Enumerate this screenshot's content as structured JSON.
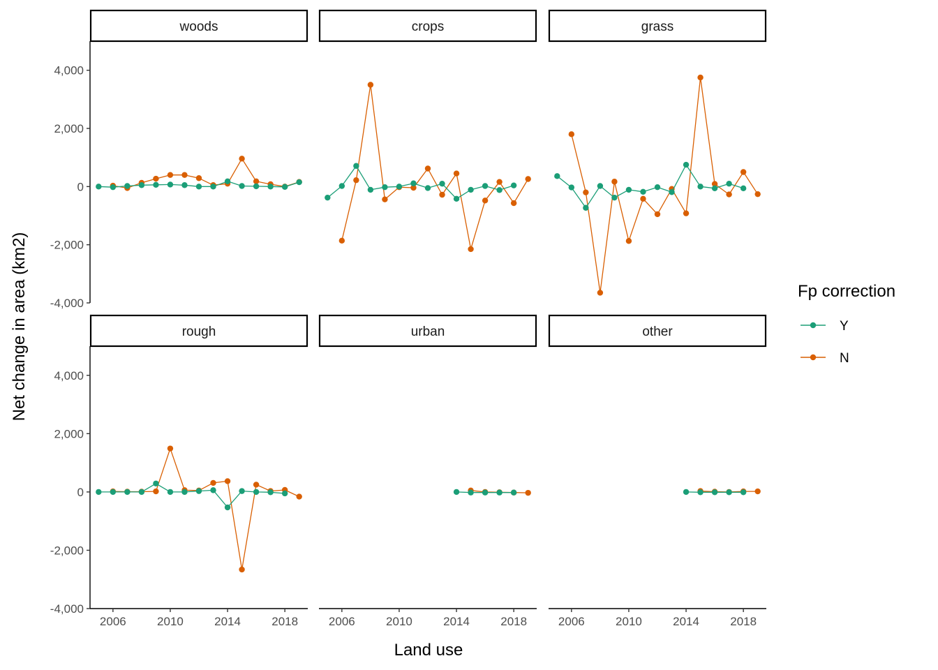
{
  "chart_data": {
    "type": "line",
    "layout": "facets-2x3",
    "xlabel": "Land use",
    "ylabel": "Net change in area (km2)",
    "xlim": [
      2004.4,
      2019.6
    ],
    "ylim": [
      -4000,
      5000
    ],
    "x_ticks": [
      2006,
      2010,
      2014,
      2018
    ],
    "x_tick_labels": [
      "2006",
      "2010",
      "2014",
      "2018"
    ],
    "y_ticks": [
      -4000,
      -2000,
      0,
      2000,
      4000
    ],
    "y_tick_labels": [
      "-4,000",
      "-2,000",
      "0",
      "2,000",
      "4,000"
    ],
    "grid": false,
    "legend": {
      "title": "Fp correction",
      "placement": "right",
      "entries": [
        {
          "key": "Y",
          "label": "Y",
          "color": "#1b9e77"
        },
        {
          "key": "N",
          "label": "N",
          "color": "#d95f02"
        }
      ]
    },
    "facets": [
      {
        "name": "woods",
        "series": [
          {
            "key": "Y",
            "x": [
              2005,
              2006,
              2007,
              2008,
              2009,
              2010,
              2011,
              2012,
              2013,
              2014,
              2015,
              2016,
              2017,
              2018,
              2019
            ],
            "values": [
              0,
              -20,
              20,
              50,
              60,
              70,
              50,
              0,
              0,
              180,
              20,
              10,
              0,
              -10,
              150
            ]
          },
          {
            "key": "N",
            "x": [
              2006,
              2007,
              2008,
              2009,
              2010,
              2011,
              2012,
              2013,
              2014,
              2015,
              2016,
              2017,
              2018,
              2019
            ],
            "values": [
              30,
              -50,
              130,
              270,
              400,
              400,
              290,
              50,
              100,
              960,
              180,
              80,
              0,
              160
            ]
          }
        ]
      },
      {
        "name": "crops",
        "series": [
          {
            "key": "Y",
            "x": [
              2005,
              2006,
              2007,
              2008,
              2009,
              2010,
              2011,
              2012,
              2013,
              2014,
              2015,
              2016,
              2017,
              2018
            ],
            "values": [
              -380,
              20,
              710,
              -110,
              -20,
              0,
              110,
              -50,
              100,
              -420,
              -110,
              20,
              -120,
              40
            ]
          },
          {
            "key": "N",
            "x": [
              2006,
              2007,
              2008,
              2009,
              2010,
              2011,
              2012,
              2013,
              2014,
              2015,
              2016,
              2017,
              2018,
              2019
            ],
            "values": [
              -1860,
              220,
              3500,
              -440,
              -20,
              -40,
              620,
              -280,
              450,
              -2150,
              -480,
              160,
              -570,
              260
            ]
          }
        ]
      },
      {
        "name": "grass",
        "series": [
          {
            "key": "Y",
            "x": [
              2005,
              2006,
              2007,
              2008,
              2009,
              2010,
              2011,
              2012,
              2013,
              2014,
              2015,
              2016,
              2017,
              2018
            ],
            "values": [
              360,
              -30,
              -730,
              20,
              -380,
              -110,
              -180,
              -20,
              -190,
              750,
              0,
              -60,
              100,
              -60
            ]
          },
          {
            "key": "N",
            "x": [
              2006,
              2007,
              2008,
              2009,
              2010,
              2011,
              2012,
              2013,
              2014,
              2015,
              2016,
              2017,
              2018,
              2019
            ],
            "values": [
              1800,
              -200,
              -3650,
              170,
              -1870,
              -420,
              -950,
              -80,
              -920,
              3750,
              90,
              -270,
              500,
              -260
            ]
          }
        ]
      },
      {
        "name": "rough",
        "series": [
          {
            "key": "Y",
            "x": [
              2005,
              2006,
              2007,
              2008,
              2009,
              2010,
              2011,
              2012,
              2013,
              2014,
              2015,
              2016,
              2017,
              2018
            ],
            "values": [
              0,
              0,
              0,
              0,
              290,
              0,
              0,
              30,
              60,
              -530,
              30,
              0,
              -10,
              -50
            ]
          },
          {
            "key": "N",
            "x": [
              2006,
              2007,
              2008,
              2009,
              2010,
              2011,
              2012,
              2013,
              2014,
              2015,
              2016,
              2017,
              2018,
              2019
            ],
            "values": [
              20,
              10,
              10,
              20,
              1490,
              60,
              50,
              310,
              370,
              -2660,
              250,
              30,
              70,
              -160
            ]
          }
        ]
      },
      {
        "name": "urban",
        "series": [
          {
            "key": "Y",
            "x": [
              2014,
              2015,
              2016,
              2017,
              2018
            ],
            "values": [
              0,
              -20,
              -20,
              -20,
              -20
            ]
          },
          {
            "key": "N",
            "x": [
              2015,
              2016,
              2017,
              2018,
              2019
            ],
            "values": [
              50,
              0,
              -10,
              -20,
              -30
            ]
          }
        ]
      },
      {
        "name": "other",
        "series": [
          {
            "key": "Y",
            "x": [
              2014,
              2015,
              2016,
              2017,
              2018
            ],
            "values": [
              0,
              -10,
              -10,
              -10,
              -10
            ]
          },
          {
            "key": "N",
            "x": [
              2015,
              2016,
              2017,
              2018,
              2019
            ],
            "values": [
              30,
              10,
              0,
              20,
              20
            ]
          }
        ]
      }
    ]
  }
}
